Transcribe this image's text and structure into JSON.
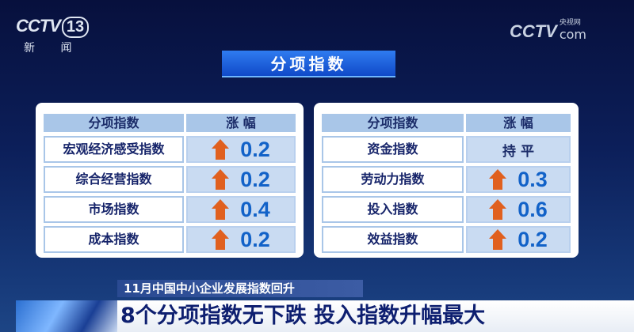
{
  "logo": {
    "brand": "CCTV",
    "channel": "13",
    "name": "新 闻"
  },
  "watermark": {
    "brand": "CCTV",
    "suffix": "com",
    "label": "央视网"
  },
  "title": "分项指数",
  "colors": {
    "arrow": "#e0601f",
    "value": "#1262c8",
    "header": "#a9c6e8"
  },
  "tables": [
    {
      "headers": [
        "分项指数",
        "涨 幅"
      ],
      "rows": [
        {
          "name": "宏观经济感受指数",
          "direction": "up",
          "value": "0.2"
        },
        {
          "name": "综合经营指数",
          "direction": "up",
          "value": "0.2"
        },
        {
          "name": "市场指数",
          "direction": "up",
          "value": "0.4"
        },
        {
          "name": "成本指数",
          "direction": "up",
          "value": "0.2"
        }
      ]
    },
    {
      "headers": [
        "分项指数",
        "涨 幅"
      ],
      "rows": [
        {
          "name": "资金指数",
          "direction": "flat",
          "value": "持 平"
        },
        {
          "name": "劳动力指数",
          "direction": "up",
          "value": "0.3"
        },
        {
          "name": "投入指数",
          "direction": "up",
          "value": "0.6"
        },
        {
          "name": "效益指数",
          "direction": "up",
          "value": "0.2"
        }
      ]
    }
  ],
  "caption": {
    "top": "11月中国中小企业发展指数回升",
    "main": "8个分项指数无下跌 投入指数升幅最大"
  }
}
